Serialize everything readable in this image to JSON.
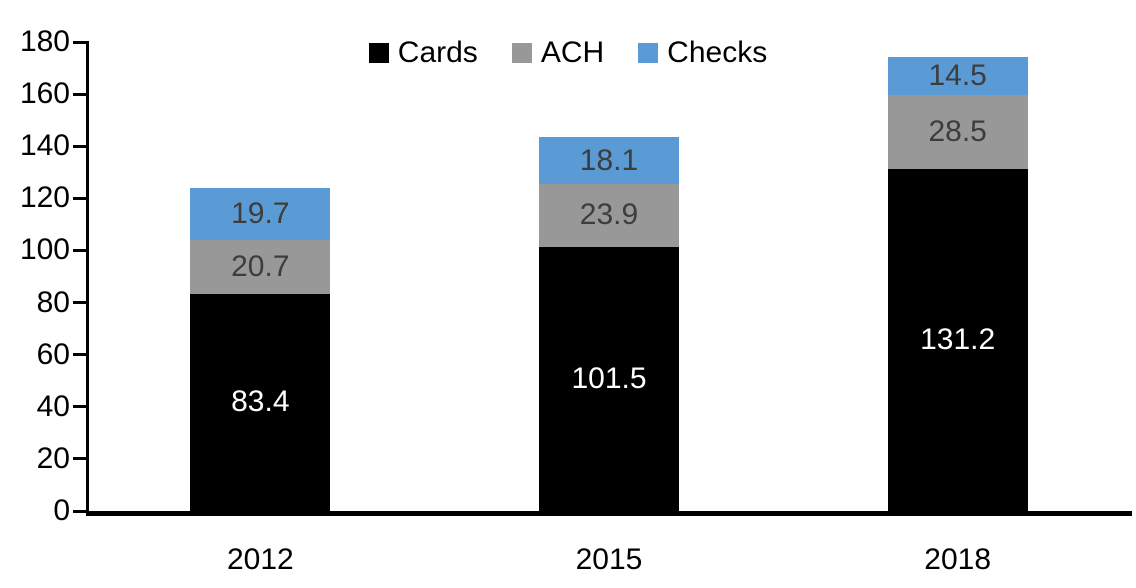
{
  "chart_data": {
    "type": "bar",
    "stacked": true,
    "title": "",
    "xlabel": "",
    "ylabel": "",
    "categories": [
      "2012",
      "2015",
      "2018"
    ],
    "series": [
      {
        "name": "Cards",
        "color": "#000000",
        "label_color": "#ffffff",
        "values": [
          83.4,
          101.5,
          131.2
        ]
      },
      {
        "name": "ACH",
        "color": "#989898",
        "label_color": "#3d3d3d",
        "values": [
          20.7,
          23.9,
          28.5
        ]
      },
      {
        "name": "Checks",
        "color": "#5b9bd5",
        "label_color": "#3d3d3d",
        "values": [
          19.7,
          18.1,
          14.5
        ]
      }
    ],
    "ylim": [
      0,
      180
    ],
    "ytick_step": 20,
    "yticks": [
      0,
      20,
      40,
      60,
      80,
      100,
      120,
      140,
      160,
      180
    ],
    "legend_position": "top-center",
    "grid": false,
    "axis_color": "#000000",
    "background_color": "#ffffff",
    "value_labels": "inside-center"
  }
}
